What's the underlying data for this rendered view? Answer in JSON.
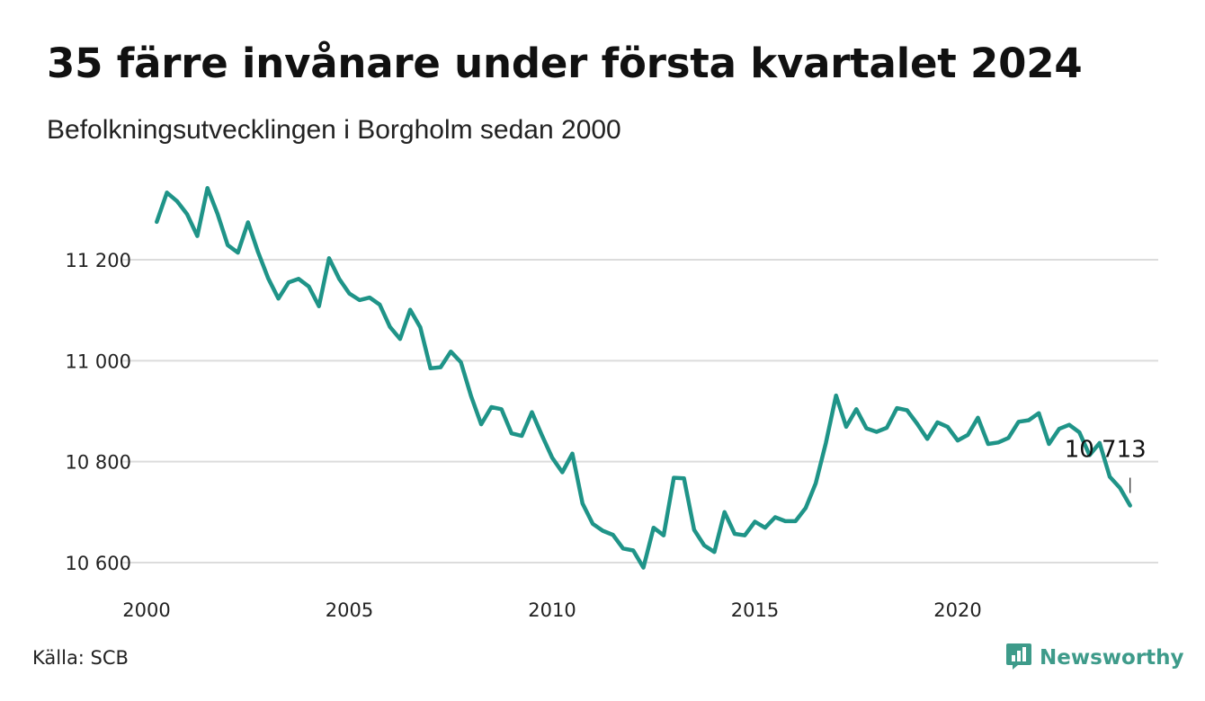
{
  "title": "35 färre invånare under första kvartalet 2024",
  "subtitle": "Befolkningsutvecklingen i Borgholm sedan 2000",
  "source": "Källa: SCB",
  "brand": {
    "name": "Newsworthy",
    "icon": "bar-chart-speech-bubble-icon",
    "color": "#3e9b8a"
  },
  "chart_data": {
    "type": "line",
    "title": "35 färre invånare under första kvartalet 2024",
    "subtitle": "Befolkningsutvecklingen i Borgholm sedan 2000",
    "xlabel": "",
    "ylabel": "",
    "xlim": [
      2000,
      2024.25
    ],
    "ylim": [
      10578,
      11348
    ],
    "x_ticks": [
      2000,
      2005,
      2010,
      2015,
      2020
    ],
    "x_tick_labels": [
      "2000",
      "2005",
      "2010",
      "2015",
      "2020"
    ],
    "y_ticks": [
      10600,
      10800,
      11000,
      11200
    ],
    "y_tick_labels": [
      "10 600",
      "10 800",
      "11 000",
      "11 200"
    ],
    "grid": "horizontal",
    "line_color": "#1f9488",
    "end_label": "10 713",
    "series": [
      {
        "x": [
          2000.25,
          2000.5,
          2000.75,
          2001,
          2001.25,
          2001.5,
          2001.75,
          2002,
          2002.25,
          2002.5,
          2002.75,
          2003,
          2003.25,
          2003.5,
          2003.75,
          2004,
          2004.25,
          2004.5,
          2004.75,
          2005,
          2005.25,
          2005.5,
          2005.75,
          2006,
          2006.25,
          2006.5,
          2006.75,
          2007,
          2007.25,
          2007.5,
          2007.75,
          2008,
          2008.25,
          2008.5,
          2008.75,
          2009,
          2009.25,
          2009.5,
          2009.75,
          2010,
          2010.25,
          2010.5,
          2010.75,
          2011,
          2011.25,
          2011.5,
          2011.75,
          2012,
          2012.25,
          2012.5,
          2012.75,
          2013,
          2013.25,
          2013.5,
          2013.75,
          2014,
          2014.25,
          2014.5,
          2014.75,
          2015,
          2015.25,
          2015.5,
          2015.75,
          2016,
          2016.25,
          2016.5,
          2016.75,
          2017,
          2017.25,
          2017.5,
          2017.75,
          2018,
          2018.25,
          2018.5,
          2018.75,
          2019,
          2019.25,
          2019.5,
          2019.75,
          2020,
          2020.25,
          2020.5,
          2020.75,
          2021,
          2021.25,
          2021.5,
          2021.75,
          2022,
          2022.25,
          2022.5,
          2022.75,
          2023,
          2023.25,
          2023.5,
          2023.75,
          2024,
          2024.25
        ],
        "values": [
          11275,
          11333,
          11316,
          11290,
          11247,
          11342,
          11291,
          11229,
          11214,
          11274,
          11215,
          11163,
          11123,
          11155,
          11162,
          11147,
          11108,
          11203,
          11162,
          11133,
          11120,
          11125,
          11111,
          11067,
          11043,
          11101,
          11066,
          10985,
          10987,
          11018,
          10997,
          10930,
          10874,
          10908,
          10904,
          10856,
          10851,
          10898,
          10852,
          10808,
          10779,
          10816,
          10717,
          10677,
          10663,
          10655,
          10628,
          10624,
          10590,
          10669,
          10654,
          10768,
          10767,
          10665,
          10634,
          10621,
          10700,
          10657,
          10654,
          10681,
          10669,
          10690,
          10682,
          10682,
          10708,
          10757,
          10837,
          10931,
          10869,
          10904,
          10866,
          10859,
          10867,
          10906,
          10902,
          10875,
          10845,
          10878,
          10869,
          10842,
          10853,
          10887,
          10835,
          10838,
          10847,
          10879,
          10882,
          10896,
          10835,
          10865,
          10873,
          10858,
          10813,
          10837,
          10770,
          10748,
          10713
        ]
      }
    ]
  }
}
